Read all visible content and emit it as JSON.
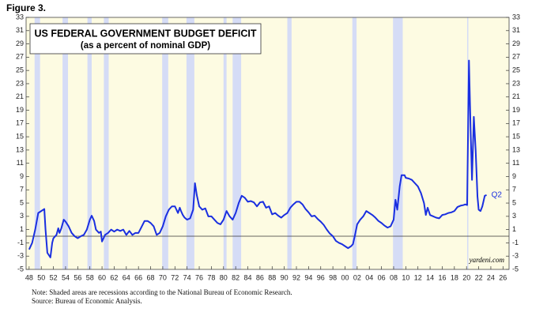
{
  "figure_label": "Figure 3.",
  "chart_data": {
    "type": "line",
    "title": "US FEDERAL GOVERNMENT BUDGET DEFICIT",
    "subtitle": "(as a percent of nominal GDP)",
    "x": [
      1948,
      1948.5,
      1949,
      1949.5,
      1950,
      1950.5,
      1950.7,
      1951,
      1951.5,
      1951.8,
      1952,
      1952.5,
      1952.8,
      1953,
      1953.3,
      1953.7,
      1954,
      1954.5,
      1955,
      1955.5,
      1956,
      1956.5,
      1957,
      1957.5,
      1958,
      1958.3,
      1958.7,
      1959,
      1959.5,
      1959.8,
      1960,
      1960.5,
      1961,
      1961.5,
      1962,
      1962.5,
      1963,
      1963.5,
      1964,
      1964.5,
      1965,
      1965.5,
      1966,
      1966.5,
      1967,
      1967.5,
      1968,
      1968.5,
      1969,
      1969.5,
      1970,
      1970.5,
      1971,
      1971.5,
      1972,
      1972.5,
      1972.8,
      1973,
      1973.3,
      1973.6,
      1974,
      1974.5,
      1975,
      1975.3,
      1975.6,
      1976,
      1976.5,
      1977,
      1977.5,
      1978,
      1978.5,
      1979,
      1979.5,
      1980,
      1980.5,
      1981,
      1981.5,
      1982,
      1982.5,
      1983,
      1983.5,
      1984,
      1984.5,
      1985,
      1985.5,
      1986,
      1986.5,
      1987,
      1987.5,
      1988,
      1988.5,
      1989,
      1989.5,
      1990,
      1990.5,
      1991,
      1991.5,
      1992,
      1992.5,
      1993,
      1993.5,
      1994,
      1994.5,
      1995,
      1995.5,
      1996,
      1996.5,
      1997,
      1997.5,
      1998,
      1998.5,
      1999,
      1999.5,
      2000,
      2000.5,
      2001,
      2001.3,
      2001.6,
      2002,
      2002.5,
      2003,
      2003.5,
      2004,
      2004.5,
      2005,
      2005.5,
      2006,
      2006.5,
      2007,
      2007.5,
      2008,
      2008.3,
      2008.6,
      2009,
      2009.3,
      2009.8,
      2010,
      2010.5,
      2011,
      2011.5,
      2012,
      2012.5,
      2013,
      2013.3,
      2013.6,
      2014,
      2014.5,
      2015,
      2015.5,
      2016,
      2016.5,
      2017,
      2017.5,
      2018,
      2018.5,
      2019,
      2019.5,
      2019.8,
      2020.1,
      2020.4,
      2020.7,
      2020.9,
      2021.2,
      2021.5,
      2021.8,
      2022,
      2022.3,
      2022.6,
      2023,
      2023.3
    ],
    "series": [
      {
        "name": "Budget deficit",
        "color": "#1a2fe0",
        "values": [
          -2,
          -1,
          1,
          3.5,
          3.8,
          4.1,
          1,
          -2.5,
          -3.2,
          -1,
          -0.3,
          0.2,
          1.2,
          0.5,
          1.2,
          2.5,
          2.2,
          1.5,
          0.5,
          0,
          -0.3,
          0,
          0.2,
          1,
          2.5,
          3.1,
          2.3,
          1,
          0.5,
          0.7,
          -0.8,
          0.2,
          0.5,
          1,
          0.7,
          1,
          0.8,
          1,
          0.2,
          0.8,
          0.2,
          0.5,
          0.5,
          1.4,
          2.3,
          2.3,
          2,
          1.5,
          0.2,
          0.5,
          1.5,
          3,
          4,
          4.5,
          4.5,
          3.5,
          4.3,
          3.8,
          3.2,
          2.8,
          2.5,
          2.7,
          4,
          8,
          6.2,
          4.5,
          4,
          4.2,
          3,
          3,
          2.5,
          2,
          1.8,
          2.5,
          3.8,
          3,
          2.5,
          3.5,
          5,
          6.1,
          5.8,
          5.2,
          5.3,
          5.1,
          4.5,
          5.1,
          5.2,
          4.3,
          4.5,
          3.3,
          3.5,
          3.1,
          2.8,
          3.2,
          3.5,
          4.3,
          4.8,
          5.2,
          5.2,
          4.8,
          4.1,
          3.6,
          3,
          3.1,
          2.6,
          2.2,
          1.7,
          1,
          0.4,
          0,
          -0.7,
          -1,
          -1.2,
          -1.5,
          -1.8,
          -1.5,
          -1.2,
          0,
          1.8,
          2.5,
          3,
          3.8,
          3.5,
          3.2,
          2.8,
          2.3,
          2,
          1.6,
          1.3,
          1.5,
          2.5,
          5.5,
          4,
          7.5,
          9.2,
          9.2,
          8.8,
          8.7,
          8.5,
          8,
          7.5,
          6.5,
          5,
          3.2,
          4.3,
          3.2,
          3,
          2.8,
          2.7,
          3.2,
          3.3,
          3.5,
          3.6,
          3.8,
          4.4,
          4.6,
          4.7,
          4.8,
          4.7,
          26.5,
          15,
          8.5,
          18,
          13,
          6,
          4,
          3.8,
          4.5,
          6.1,
          6.2
        ]
      }
    ],
    "recessions": [
      [
        1948.9,
        1949.8
      ],
      [
        1953.5,
        1954.4
      ],
      [
        1957.6,
        1958.3
      ],
      [
        1960.3,
        1961.1
      ],
      [
        1969.9,
        1970.9
      ],
      [
        1973.9,
        1975.2
      ],
      [
        1980,
        1980.5
      ],
      [
        1981.5,
        1982.9
      ],
      [
        1990.5,
        1991.2
      ],
      [
        2001.2,
        2001.9
      ],
      [
        2007.9,
        2009.5
      ],
      [
        2020.1,
        2020.3
      ]
    ],
    "recession_color": "#d5dcf6",
    "background_color": "#fdfbe2",
    "zero_line": true,
    "xlim": [
      1947.5,
      2027
    ],
    "ylim": [
      -5,
      33
    ],
    "yticks": [
      -5,
      -3,
      -1,
      1,
      3,
      5,
      7,
      9,
      11,
      13,
      15,
      17,
      19,
      21,
      23,
      25,
      27,
      29,
      31,
      33
    ],
    "xticks": [
      {
        "value": 1948,
        "label": "48"
      },
      {
        "value": 1950,
        "label": "50"
      },
      {
        "value": 1952,
        "label": "52"
      },
      {
        "value": 1954,
        "label": "54"
      },
      {
        "value": 1956,
        "label": "56"
      },
      {
        "value": 1958,
        "label": "58"
      },
      {
        "value": 1960,
        "label": "60"
      },
      {
        "value": 1962,
        "label": "62"
      },
      {
        "value": 1964,
        "label": "64"
      },
      {
        "value": 1966,
        "label": "66"
      },
      {
        "value": 1968,
        "label": "68"
      },
      {
        "value": 1970,
        "label": "70"
      },
      {
        "value": 1972,
        "label": "72"
      },
      {
        "value": 1974,
        "label": "74"
      },
      {
        "value": 1976,
        "label": "76"
      },
      {
        "value": 1978,
        "label": "78"
      },
      {
        "value": 1980,
        "label": "80"
      },
      {
        "value": 1982,
        "label": "82"
      },
      {
        "value": 1984,
        "label": "84"
      },
      {
        "value": 1986,
        "label": "86"
      },
      {
        "value": 1988,
        "label": "88"
      },
      {
        "value": 1990,
        "label": "90"
      },
      {
        "value": 1992,
        "label": "92"
      },
      {
        "value": 1994,
        "label": "94"
      },
      {
        "value": 1996,
        "label": "96"
      },
      {
        "value": 1998,
        "label": "98"
      },
      {
        "value": 2000,
        "label": "00"
      },
      {
        "value": 2002,
        "label": "02"
      },
      {
        "value": 2004,
        "label": "04"
      },
      {
        "value": 2006,
        "label": "06"
      },
      {
        "value": 2008,
        "label": "08"
      },
      {
        "value": 2010,
        "label": "10"
      },
      {
        "value": 2012,
        "label": "12"
      },
      {
        "value": 2014,
        "label": "14"
      },
      {
        "value": 2016,
        "label": "16"
      },
      {
        "value": 2018,
        "label": "18"
      },
      {
        "value": 2020,
        "label": "20"
      },
      {
        "value": 2022,
        "label": "22"
      },
      {
        "value": 2024,
        "label": "24"
      },
      {
        "value": 2026,
        "label": "26"
      }
    ],
    "last_point_label": "Q2",
    "source_credit": "yardeni.com"
  },
  "notes": [
    "Note: Shaded areas are recessions according to the National Bureau of Economic Research.",
    "Source: Bureau of Economic Analysis."
  ]
}
